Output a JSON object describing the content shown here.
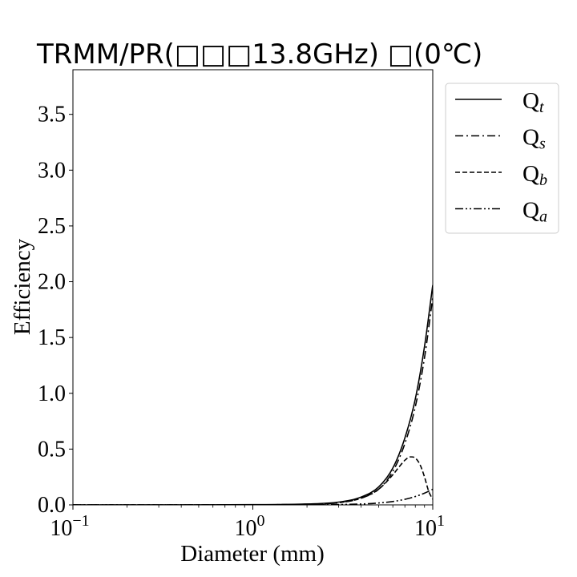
{
  "chart_data": {
    "type": "line",
    "title": "TRMM/PR(□□□13.8GHz) □(0℃)",
    "xlabel": "Diameter (mm)",
    "ylabel": "Efficiency",
    "xscale": "log",
    "xlim": [
      0.1,
      10
    ],
    "ylim": [
      0.0,
      3.9
    ],
    "xticks": [
      {
        "base": "10",
        "exp": "−1",
        "value": 0.1
      },
      {
        "base": "10",
        "exp": "0",
        "value": 1
      },
      {
        "base": "10",
        "exp": "1",
        "value": 10
      }
    ],
    "yticks": [
      "0.0",
      "0.5",
      "1.0",
      "1.5",
      "2.0",
      "2.5",
      "3.0",
      "3.5"
    ],
    "grid": false,
    "legend_position": "outside-top-right",
    "series": [
      {
        "name": "Q",
        "sub": "t",
        "dash": "solid",
        "x": [
          0.1,
          1.0,
          2.0,
          3.0,
          4.0,
          5.0,
          6.0,
          7.0,
          8.0,
          9.0,
          10.0
        ],
        "y": [
          0.0,
          0.002,
          0.008,
          0.025,
          0.07,
          0.16,
          0.33,
          0.6,
          0.95,
          1.42,
          1.97
        ]
      },
      {
        "name": "Q",
        "sub": "s",
        "dash": "dashdot",
        "x": [
          0.1,
          1.0,
          2.0,
          3.0,
          4.0,
          5.0,
          6.0,
          7.0,
          8.0,
          9.0,
          10.0
        ],
        "y": [
          0.0,
          0.001,
          0.006,
          0.02,
          0.06,
          0.14,
          0.3,
          0.55,
          0.88,
          1.32,
          1.86
        ]
      },
      {
        "name": "Q",
        "sub": "b",
        "dash": "dashed",
        "x": [
          0.1,
          1.0,
          2.0,
          3.0,
          4.0,
          5.0,
          6.0,
          6.5,
          7.0,
          7.5,
          8.0,
          8.5,
          9.0,
          9.5,
          10.0
        ],
        "y": [
          0.0,
          0.001,
          0.006,
          0.02,
          0.06,
          0.14,
          0.27,
          0.34,
          0.4,
          0.43,
          0.42,
          0.36,
          0.25,
          0.12,
          0.05
        ]
      },
      {
        "name": "Q",
        "sub": "a",
        "dash": "dashdotdot",
        "x": [
          0.1,
          1.0,
          2.0,
          3.0,
          4.0,
          5.0,
          6.0,
          7.0,
          8.0,
          9.0,
          10.0
        ],
        "y": [
          0.0,
          0.0,
          0.001,
          0.003,
          0.008,
          0.017,
          0.03,
          0.05,
          0.075,
          0.105,
          0.14
        ]
      }
    ]
  }
}
